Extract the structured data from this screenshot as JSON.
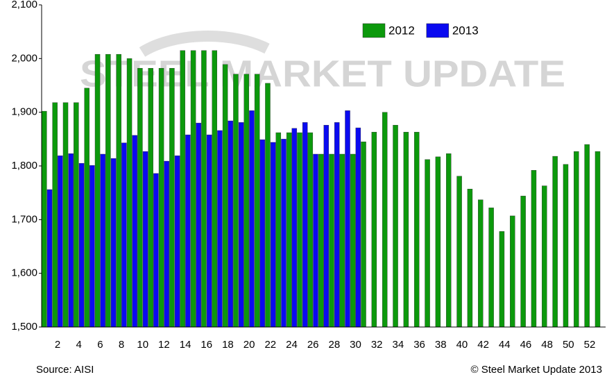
{
  "chart_data": {
    "type": "bar",
    "watermark": "STEEL MARKET UPDATE",
    "source": "Source: AISI",
    "copyright": "© Steel Market Update 2013",
    "categories": [
      null,
      2,
      null,
      4,
      null,
      6,
      null,
      8,
      null,
      10,
      null,
      12,
      null,
      14,
      null,
      16,
      null,
      18,
      null,
      20,
      null,
      22,
      null,
      24,
      null,
      26,
      null,
      28,
      null,
      30,
      null,
      32,
      null,
      34,
      null,
      36,
      null,
      38,
      null,
      40,
      null,
      42,
      null,
      44,
      null,
      46,
      null,
      48,
      null,
      50,
      null,
      52,
      null
    ],
    "series": [
      {
        "name": "2012",
        "color": "#0c990c",
        "values": [
          1902,
          1918,
          1918,
          1918,
          1945,
          2008,
          2008,
          2008,
          2000,
          1982,
          1982,
          1982,
          1982,
          2015,
          2015,
          2015,
          2015,
          1989,
          1971,
          1971,
          1971,
          1954,
          1862,
          1862,
          1862,
          1862,
          1822,
          1822,
          1822,
          1822,
          1845,
          1863,
          1900,
          1876,
          1863,
          1863,
          1812,
          1817,
          1823,
          1781,
          1757,
          1737,
          1722,
          1678,
          1707,
          1744,
          1792,
          1763,
          1818,
          1803,
          1827,
          1840,
          1827
        ]
      },
      {
        "name": "2013",
        "color": "#0a0af0",
        "values": [
          1756,
          1819,
          1823,
          1805,
          1801,
          1822,
          1814,
          1843,
          1857,
          1827,
          1786,
          1809,
          1819,
          1858,
          1880,
          1858,
          1866,
          1884,
          1881,
          1903,
          1849,
          1844,
          1850,
          1870,
          1881,
          1822,
          1876,
          1881,
          1903,
          1871,
          null,
          null,
          null,
          null,
          null,
          null,
          null,
          null,
          null,
          null,
          null,
          null,
          null,
          null,
          null,
          null,
          null,
          null,
          null,
          null,
          null,
          null,
          null
        ]
      }
    ],
    "ylim": [
      1500,
      2100
    ],
    "yticks": [
      {
        "value": 1500,
        "label": "1,500"
      },
      {
        "value": 1600,
        "label": "1,600"
      },
      {
        "value": 1700,
        "label": "1,700"
      },
      {
        "value": 1800,
        "label": "1,800"
      },
      {
        "value": 1900,
        "label": "1,900"
      },
      {
        "value": 2000,
        "label": "2,000"
      },
      {
        "value": 2100,
        "label": "2,100"
      }
    ],
    "grid": false,
    "legend": "top-right"
  }
}
